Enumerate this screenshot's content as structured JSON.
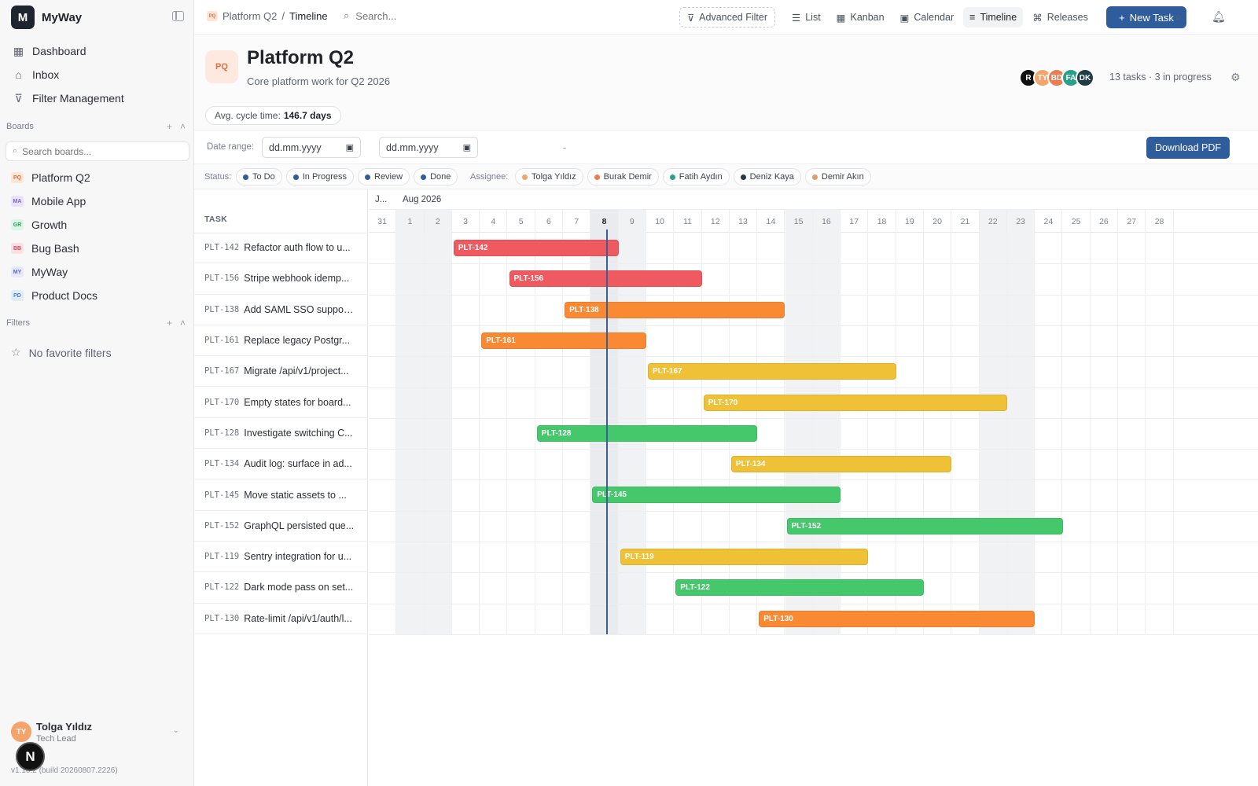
{
  "app": {
    "name": "MyWay",
    "logo": "M",
    "version": "v1.10.2 (build 20260807.2226)"
  },
  "sidebar": {
    "nav": [
      {
        "label": "Dashboard",
        "icon": "grid-icon"
      },
      {
        "label": "Inbox",
        "icon": "inbox-icon"
      },
      {
        "label": "Filter Management",
        "icon": "filter-icon"
      }
    ],
    "boards_label": "Boards",
    "board_search_placeholder": "Search boards...",
    "boards": [
      {
        "label": "Platform Q2",
        "badge": "PQ",
        "bg": "#fde5d8",
        "fg": "#e0703a"
      },
      {
        "label": "Mobile App",
        "badge": "MA",
        "bg": "#e8e3fb",
        "fg": "#7b61d8"
      },
      {
        "label": "Growth",
        "badge": "GR",
        "bg": "#dcf5e6",
        "fg": "#2f9e5f"
      },
      {
        "label": "Bug Bash",
        "badge": "BB",
        "bg": "#fde0e3",
        "fg": "#d9465a"
      },
      {
        "label": "MyWay",
        "badge": "MY",
        "bg": "#e6e9fb",
        "fg": "#5867cf"
      },
      {
        "label": "Product Docs",
        "badge": "PD",
        "bg": "#e1ecfb",
        "fg": "#4d83d1"
      }
    ],
    "filters_label": "Filters",
    "no_filters": "No favorite filters",
    "user": {
      "initials": "TY",
      "name": "Tolga Yıldız",
      "role": "Tech Lead"
    }
  },
  "topbar": {
    "breadcrumb_board": "Platform Q2",
    "breadcrumb_sep": "/",
    "breadcrumb_current": "Timeline",
    "search_placeholder": "Search...",
    "advanced_filter": "Advanced Filter",
    "views": [
      {
        "label": "List",
        "icon": "list-icon",
        "active": false
      },
      {
        "label": "Kanban",
        "icon": "kanban-icon",
        "active": false
      },
      {
        "label": "Calendar",
        "icon": "calendar-icon",
        "active": false
      },
      {
        "label": "Timeline",
        "icon": "timeline-icon",
        "active": true
      },
      {
        "label": "Releases",
        "icon": "tag-icon",
        "active": false
      }
    ],
    "new_task": "New Task"
  },
  "project": {
    "logo": "PQ",
    "title": "Platform Q2",
    "subtitle": "Core platform work for Q2 2026",
    "members": [
      {
        "initials": "R",
        "color": "#111111"
      },
      {
        "initials": "TY",
        "color": "#f4a36b"
      },
      {
        "initials": "BD",
        "color": "#ee7a52"
      },
      {
        "initials": "FA",
        "color": "#2aa08a"
      },
      {
        "initials": "DK",
        "color": "#1f3b46"
      }
    ],
    "summary": "13 tasks · 3 in progress",
    "cycle_label": "Avg. cycle time:",
    "cycle_value": "146.7 days"
  },
  "range": {
    "label": "Date range:",
    "from_placeholder": "dd.mm.yyyy",
    "to_placeholder": "dd.mm.yyyy",
    "dash": "-",
    "download": "Download PDF"
  },
  "filters": {
    "status_label": "Status:",
    "statuses": [
      {
        "label": "To Do",
        "color": "#2f5c9a"
      },
      {
        "label": "In Progress",
        "color": "#2f5c9a"
      },
      {
        "label": "Review",
        "color": "#2f5c9a"
      },
      {
        "label": "Done",
        "color": "#2f5c9a"
      }
    ],
    "assignee_label": "Assignee:",
    "assignees": [
      {
        "label": "Tolga Yıldız",
        "color": "#f4a36b"
      },
      {
        "label": "Burak Demir",
        "color": "#ee7a52"
      },
      {
        "label": "Fatih Aydın",
        "color": "#2aa08a"
      },
      {
        "label": "Deniz Kaya",
        "color": "#1f3b46"
      },
      {
        "label": "Demir Akın",
        "color": "#d9a06b"
      }
    ]
  },
  "timeline": {
    "column_header": "TASK",
    "month_prev": "J...",
    "month_current": "Aug 2026",
    "days": [
      "31",
      "1",
      "2",
      "3",
      "4",
      "5",
      "6",
      "7",
      "8",
      "9",
      "10",
      "11",
      "12",
      "13",
      "14",
      "15",
      "16",
      "17",
      "18",
      "19",
      "20",
      "21",
      "22",
      "23",
      "24",
      "25",
      "26",
      "27",
      "28"
    ],
    "weekend_days": [
      "1",
      "2",
      "8",
      "9",
      "15",
      "16",
      "22",
      "23"
    ],
    "today": "8",
    "tasks": [
      {
        "id": "PLT-142",
        "title": "Refactor auth flow to u...",
        "start": "3",
        "end": "9",
        "color": "#ee5a5f"
      },
      {
        "id": "PLT-156",
        "title": "Stripe webhook idemp...",
        "start": "5",
        "end": "12",
        "color": "#ee5a5f"
      },
      {
        "id": "PLT-138",
        "title": "Add SAML SSO suppor...",
        "start": "7",
        "end": "15",
        "color": "#f98a33"
      },
      {
        "id": "PLT-161",
        "title": "Replace legacy Postgr...",
        "start": "4",
        "end": "10",
        "color": "#f98a33"
      },
      {
        "id": "PLT-167",
        "title": "Migrate /api/v1/project...",
        "start": "10",
        "end": "19",
        "color": "#eec136"
      },
      {
        "id": "PLT-170",
        "title": "Empty states for board...",
        "start": "12",
        "end": "23",
        "color": "#eec136"
      },
      {
        "id": "PLT-128",
        "title": "Investigate switching C...",
        "start": "6",
        "end": "14",
        "color": "#45c86b"
      },
      {
        "id": "PLT-134",
        "title": "Audit log: surface in ad...",
        "start": "13",
        "end": "21",
        "color": "#eec136"
      },
      {
        "id": "PLT-145",
        "title": "Move static assets to ...",
        "start": "8",
        "end": "17",
        "color": "#45c86b"
      },
      {
        "id": "PLT-152",
        "title": "GraphQL persisted que...",
        "start": "15",
        "end": "25",
        "color": "#45c86b"
      },
      {
        "id": "PLT-119",
        "title": "Sentry integration for u...",
        "start": "9",
        "end": "18",
        "color": "#eec136"
      },
      {
        "id": "PLT-122",
        "title": "Dark mode pass on set...",
        "start": "11",
        "end": "20",
        "color": "#45c86b"
      },
      {
        "id": "PLT-130",
        "title": "Rate-limit /api/v1/auth/l...",
        "start": "14",
        "end": "24",
        "color": "#f98a33"
      }
    ]
  }
}
